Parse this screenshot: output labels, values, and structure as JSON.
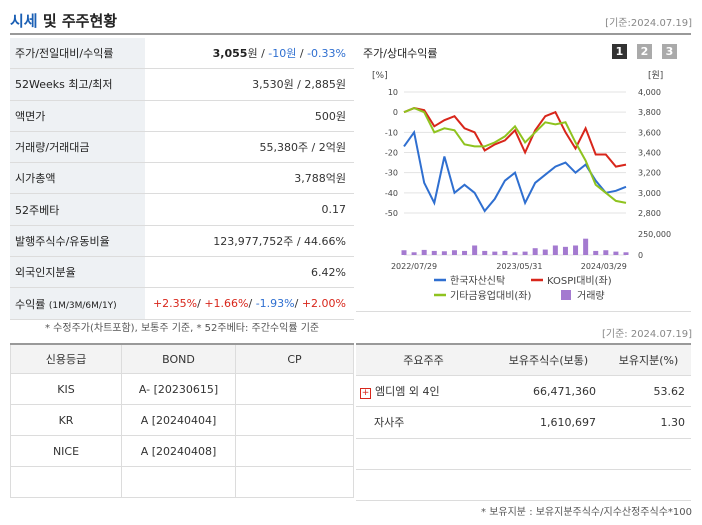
{
  "header": {
    "title_a": "시세",
    "title_b": " 및 주주현황",
    "date": "[기준:2024.07.19]"
  },
  "quote": {
    "rows": [
      {
        "label": "주가/전일대비/수익률",
        "price": "3,055",
        "unit": "원",
        "change": "-10원",
        "rate": "-0.33%"
      },
      {
        "label": "52Weeks 최고/최저",
        "value": "3,530원 / 2,885원"
      },
      {
        "label": "액면가",
        "value": "500원"
      },
      {
        "label": "거래량/거래대금",
        "value": "55,380주 / 2억원"
      },
      {
        "label": "시가총액",
        "value": "3,788억원"
      },
      {
        "label": "52주베타",
        "value": "0.17"
      },
      {
        "label": "발행주식수/유동비율",
        "value": "123,977,752주 / 44.66%"
      },
      {
        "label": "외국인지분율",
        "value": "6.42%"
      },
      {
        "label": "수익률",
        "label_sub": "(1M/3M/6M/1Y)",
        "r1": "+2.35%",
        "r2": "+1.66%",
        "r3": "-1.93%",
        "r4": "+2.00%"
      }
    ],
    "note": "* 수정주가(차트포함), 보통주 기준, * 52주베타: 주간수익률 기준"
  },
  "chart_panel": {
    "title": "주가/상대수익률",
    "pages": [
      "1",
      "2",
      "3"
    ],
    "date": "[기준: 2024.07.19]"
  },
  "chart_data": {
    "type": "line",
    "left_axis": {
      "label": "[%]",
      "ticks": [
        "10",
        "0",
        "-10",
        "-20",
        "-30",
        "-40",
        "-50"
      ],
      "range": [
        -50,
        10
      ]
    },
    "right_axis": {
      "label": "[원]",
      "ticks": [
        "4,000",
        "3,800",
        "3,600",
        "3,400",
        "3,200",
        "3,000",
        "2,800"
      ],
      "range": [
        2800,
        4000
      ]
    },
    "volume_axis": {
      "ticks": [
        "250,000",
        "0"
      ],
      "range": [
        0,
        250000
      ]
    },
    "x_ticks": [
      "2022/07/29",
      "2023/05/31",
      "2024/03/29"
    ],
    "series": [
      {
        "name": "한국자산신탁",
        "color": "#2f6fd0",
        "axis": "left",
        "values": [
          -17,
          -10,
          -35,
          -45,
          -22,
          -40,
          -36,
          -40,
          -49,
          -43,
          -34,
          -30,
          -45,
          -35,
          -31,
          -27,
          -25,
          -30,
          -26,
          -34,
          -40,
          -39,
          -37
        ]
      },
      {
        "name": "KOSPI대비(좌)",
        "color": "#d8261b",
        "axis": "left",
        "values": [
          0,
          2,
          1,
          -7,
          -4,
          -2,
          -8,
          -10,
          -19,
          -16,
          -14,
          -9,
          -20,
          -9,
          -2,
          0,
          -10,
          -18,
          -8,
          -21,
          -21,
          -27,
          -26
        ]
      },
      {
        "name": "기타금융업대비(좌)",
        "color": "#8fc31f",
        "axis": "left",
        "values": [
          0,
          2,
          0,
          -10,
          -8,
          -9,
          -16,
          -17,
          -17,
          -15,
          -12,
          -7,
          -15,
          -10,
          -5,
          -6,
          -5,
          -15,
          -24,
          -36,
          -40,
          -44,
          -45
        ]
      }
    ],
    "volume": {
      "name": "거래량",
      "color": "#a47ad0",
      "values": [
        70000,
        40000,
        75000,
        60000,
        55000,
        70000,
        60000,
        140000,
        60000,
        50000,
        60000,
        40000,
        50000,
        100000,
        80000,
        140000,
        120000,
        140000,
        240000,
        60000,
        70000,
        50000,
        40000
      ]
    }
  },
  "credit": {
    "headers": [
      "신용등급",
      "BOND",
      "CP"
    ],
    "rows": [
      {
        "agency": "KIS",
        "bond": "A-  [20230615]",
        "cp": ""
      },
      {
        "agency": "KR",
        "bond": "A  [20240404]",
        "cp": ""
      },
      {
        "agency": "NICE",
        "bond": "A  [20240408]",
        "cp": ""
      },
      {
        "agency": "",
        "bond": "",
        "cp": ""
      }
    ]
  },
  "holders": {
    "headers": [
      "주요주주",
      "보유주식수(보통)",
      "보유지분(%)"
    ],
    "rows": [
      {
        "name": "엠디엠 외 4인",
        "shares": "66,471,360",
        "pct": "53.62",
        "expand": "+"
      },
      {
        "name": "자사주",
        "shares": "1,610,697",
        "pct": "1.30"
      },
      {
        "name": "",
        "shares": "",
        "pct": ""
      },
      {
        "name": "",
        "shares": "",
        "pct": ""
      }
    ],
    "note": "* 보유지분 : 보유지분주식수/지수산정주식수*100"
  }
}
